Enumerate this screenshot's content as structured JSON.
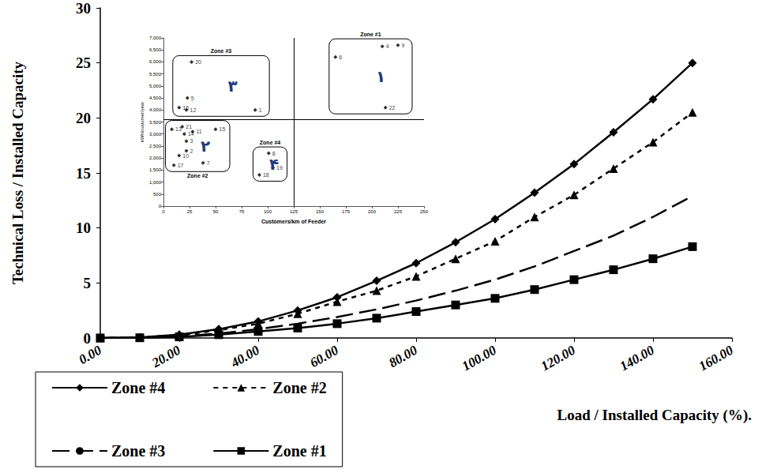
{
  "chart_data": [
    {
      "type": "line",
      "x_label": "Load / Installed Capacity (%).",
      "y_label": "Technical Loss / Installed Capacity",
      "x": [
        0,
        10,
        20,
        30,
        40,
        50,
        60,
        70,
        80,
        90,
        100,
        110,
        120,
        130,
        140,
        150
      ],
      "xlim": [
        0,
        160
      ],
      "xticks": [
        {
          "value": 0,
          "label": "0.00"
        },
        {
          "value": 20,
          "label": "20.00"
        },
        {
          "value": 40,
          "label": "40.00"
        },
        {
          "value": 60,
          "label": "60.00"
        },
        {
          "value": 80,
          "label": "80.00"
        },
        {
          "value": 100,
          "label": "100.00"
        },
        {
          "value": 120,
          "label": "120.00"
        },
        {
          "value": 140,
          "label": "140.00"
        },
        {
          "value": 160,
          "label": "160.00"
        }
      ],
      "ylim": [
        0,
        30
      ],
      "yticks": [
        0,
        5,
        10,
        15,
        20,
        25,
        30
      ],
      "grid": false,
      "legend": "bottom-left",
      "series": [
        {
          "name": "Zone #4",
          "color": "#000000",
          "marker": "diamond",
          "line_style": "solid",
          "values": [
            0,
            0.05,
            0.3,
            0.8,
            1.5,
            2.5,
            3.7,
            5.2,
            6.8,
            8.7,
            10.8,
            13.2,
            15.8,
            18.7,
            21.7,
            25
          ]
        },
        {
          "name": "Zone #2",
          "color": "#000000",
          "marker": "triangle",
          "line_style": "short_dash",
          "values": [
            0,
            0.05,
            0.25,
            0.7,
            1.3,
            2.2,
            3.3,
            4.3,
            5.6,
            7.2,
            8.8,
            11,
            13,
            15.4,
            17.8,
            20.5
          ]
        },
        {
          "name": "Zone #3",
          "color": "#000000",
          "marker": "none",
          "line_style": "long_dash",
          "values": [
            0,
            0.03,
            0.15,
            0.4,
            0.8,
            1.3,
            1.9,
            2.6,
            3.4,
            4.3,
            5.3,
            6.5,
            7.9,
            9.3,
            11,
            12.9
          ]
        },
        {
          "name": "Zone #1",
          "color": "#000000",
          "marker": "square",
          "line_style": "solid",
          "values": [
            0,
            0.02,
            0.1,
            0.3,
            0.6,
            0.9,
            1.3,
            1.8,
            2.4,
            3,
            3.6,
            4.4,
            5.3,
            6.2,
            7.2,
            8.3
          ]
        }
      ]
    },
    {
      "type": "scatter",
      "x_label": "Customers/km of Feeder",
      "y_label": "kWh/customer/year",
      "xlim": [
        0,
        250
      ],
      "xticks": [
        0,
        25,
        50,
        75,
        100,
        125,
        150,
        175,
        200,
        225,
        250
      ],
      "ylim": [
        0,
        7000
      ],
      "yticks": [
        0,
        500,
        {
          "value": 1000,
          "label": "1,000"
        },
        {
          "value": 1500,
          "label": "1,500"
        },
        {
          "value": 2000,
          "label": "2,000"
        },
        {
          "value": 2500,
          "label": "2,500"
        },
        {
          "value": 3000,
          "label": "3,000"
        },
        {
          "value": 3500,
          "label": "3,500"
        },
        {
          "value": 4000,
          "label": "4,000"
        },
        {
          "value": 4500,
          "label": "4,500"
        },
        {
          "value": 5000,
          "label": "5,000"
        },
        {
          "value": 5500,
          "label": "5,500"
        },
        {
          "value": 6000,
          "label": "6,000"
        },
        {
          "value": 6500,
          "label": "6,500"
        },
        {
          "value": 7000,
          "label": "7,000"
        }
      ],
      "grid": false,
      "dividers": {
        "x": 125,
        "y": 3600
      },
      "zone_mark_color": "#1f3a7a",
      "series": [
        {
          "name": "Zone #1",
          "zone_mark": "۱",
          "color": "#000000",
          "marker": "diamond",
          "x": [
            165,
            210,
            225,
            213
          ],
          "values": [
            6200,
            6650,
            6700,
            4100
          ],
          "point_labels": [
            "6",
            "4",
            "9",
            "22"
          ]
        },
        {
          "name": "Zone #3",
          "zone_mark": "۳",
          "color": "#000000",
          "marker": "diamond",
          "x": [
            27,
            23,
            15,
            22,
            88
          ],
          "values": [
            6000,
            4500,
            4100,
            4000,
            4000
          ],
          "point_labels": [
            "20",
            "5",
            "16",
            "12",
            "1"
          ]
        },
        {
          "name": "Zone #2",
          "zone_mark": "۲",
          "color": "#000000",
          "marker": "diamond",
          "x": [
            18,
            8,
            28,
            50,
            20,
            22,
            22,
            15,
            38,
            10
          ],
          "values": [
            3300,
            3200,
            3100,
            3200,
            3000,
            2700,
            2300,
            2100,
            1800,
            1700
          ],
          "point_labels": [
            "21",
            "13",
            "11",
            "15",
            "14",
            "3",
            "2",
            "10",
            "7",
            "17"
          ]
        },
        {
          "name": "Zone #4",
          "zone_mark": "۴",
          "color": "#000000",
          "marker": "diamond",
          "x": [
            101,
            105,
            92
          ],
          "values": [
            2200,
            1600,
            1300
          ],
          "point_labels": [
            "8",
            "19",
            "18"
          ]
        }
      ]
    }
  ]
}
